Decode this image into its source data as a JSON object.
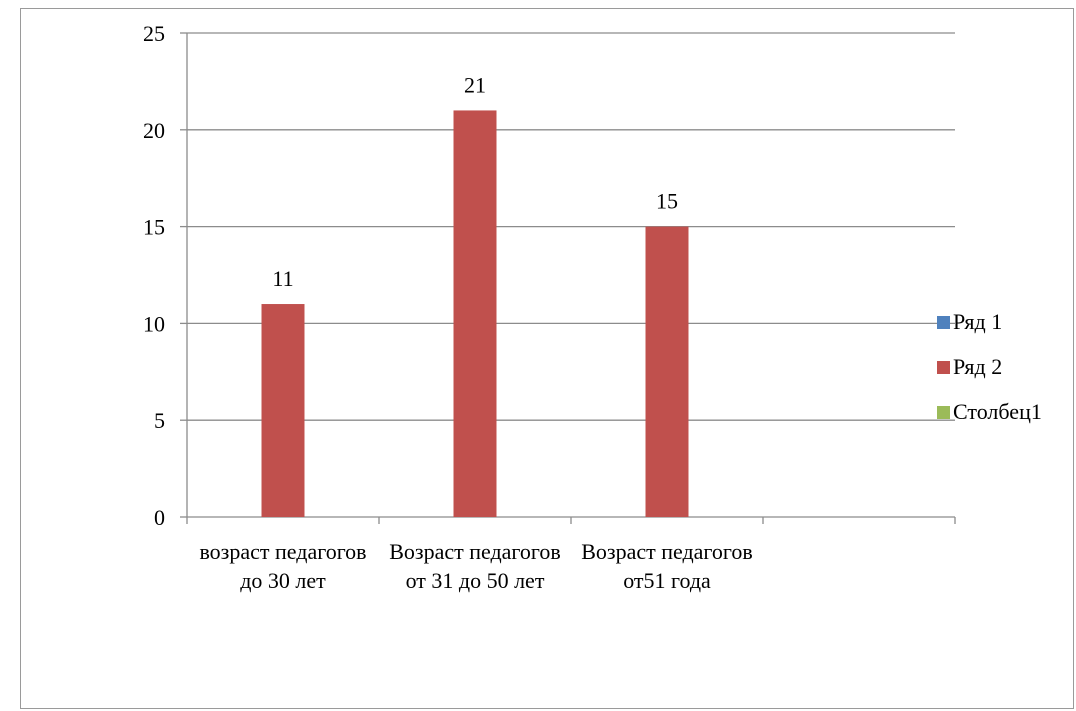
{
  "chart_data": {
    "type": "bar",
    "categories": [
      "возраст педагогов до 30 лет",
      "Возраст педагогов от 31 до 50 лет",
      "Возраст педагогов от51 года",
      ""
    ],
    "series": [
      {
        "name": "Ряд 1",
        "color": "#4f81bd",
        "values": [
          null,
          null,
          null,
          null
        ]
      },
      {
        "name": "Ряд 2",
        "color": "#c0504d",
        "values": [
          11,
          21,
          15,
          null
        ]
      },
      {
        "name": "Столбец1",
        "color": "#9bbb59",
        "values": [
          null,
          null,
          null,
          null
        ]
      }
    ],
    "data_labels": [
      "11",
      "21",
      "15",
      ""
    ],
    "title": "",
    "xlabel": "",
    "ylabel": "",
    "ylim": [
      0,
      25
    ],
    "yticks": [
      0,
      5,
      10,
      15,
      20,
      25
    ],
    "grid": true,
    "legend_position": "right"
  }
}
